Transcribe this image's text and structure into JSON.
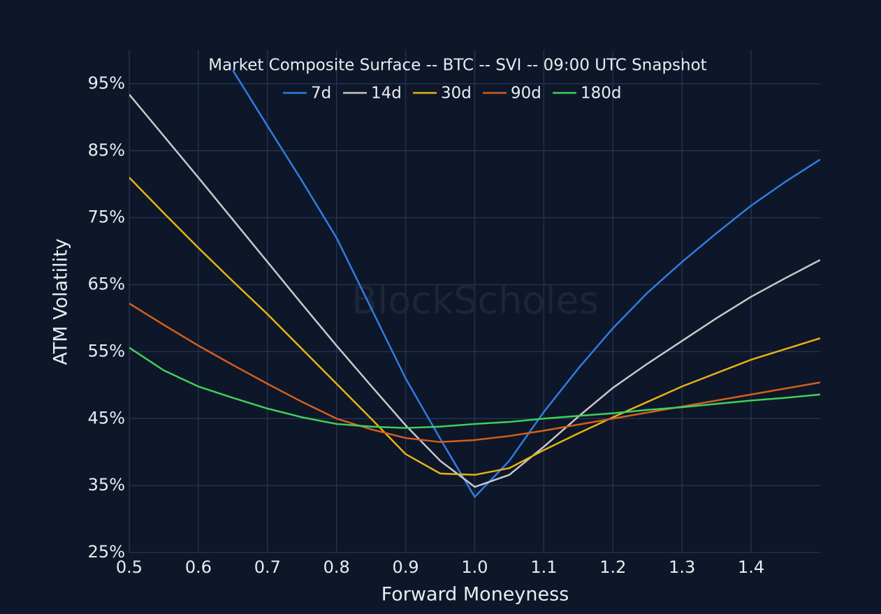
{
  "chart_data": {
    "type": "line",
    "title": "Market Composite Surface -- BTC -- SVI -- 09:00 UTC Snapshot",
    "x_label": "Forward Moneyness",
    "y_label": "ATM Volatility",
    "watermark": "BlockScholes",
    "x": [
      0.5,
      0.55,
      0.6,
      0.65,
      0.7,
      0.75,
      0.8,
      0.85,
      0.9,
      0.95,
      1.0,
      1.05,
      1.1,
      1.15,
      1.2,
      1.25,
      1.3,
      1.35,
      1.4,
      1.45,
      1.5
    ],
    "series": [
      {
        "name": "7d",
        "color": "#2f7de1",
        "values": [
          null,
          null,
          null,
          97,
          88.7,
          80.5,
          72,
          61.5,
          51,
          42,
          33.3,
          38.7,
          46,
          52.5,
          58.5,
          63.8,
          68.4,
          72.7,
          76.8,
          80.4,
          83.7
        ]
      },
      {
        "name": "14d",
        "color": "#c8c8c8",
        "values": [
          93.4,
          87.2,
          81,
          74.7,
          68.4,
          62.1,
          55.9,
          49.9,
          44,
          38.7,
          34.8,
          36.6,
          40.8,
          45.3,
          49.6,
          53.2,
          56.6,
          60,
          63.2,
          66,
          68.7
        ]
      },
      {
        "name": "30d",
        "color": "#e6b214",
        "values": [
          81,
          75.7,
          70.5,
          65.5,
          60.6,
          55.4,
          50.2,
          45,
          39.7,
          36.8,
          36.6,
          37.6,
          40.3,
          42.8,
          45.2,
          47.5,
          49.8,
          51.8,
          53.8,
          55.4,
          57
        ]
      },
      {
        "name": "90d",
        "color": "#d4601a",
        "values": [
          62.2,
          59,
          55.9,
          53,
          50.2,
          47.5,
          45,
          43.4,
          42.1,
          41.5,
          41.8,
          42.4,
          43.2,
          44.1,
          45,
          45.9,
          46.8,
          47.7,
          48.6,
          49.5,
          50.4
        ]
      },
      {
        "name": "180d",
        "color": "#3fd15a",
        "values": [
          55.6,
          52.2,
          49.8,
          48.1,
          46.5,
          45.2,
          44.2,
          43.8,
          43.6,
          43.8,
          44.2,
          44.5,
          45,
          45.4,
          45.8,
          46.3,
          46.7,
          47.2,
          47.7,
          48.1,
          48.6
        ]
      }
    ],
    "xlim": [
      0.5,
      1.5
    ],
    "ylim": [
      25,
      100
    ],
    "xticks": [
      0.5,
      0.6,
      0.7,
      0.8,
      0.9,
      {
        "value": 1,
        "label": "1.0"
      },
      1.1,
      1.2,
      1.3,
      1.4
    ],
    "yticks": [
      {
        "value": 25,
        "label": "25%"
      },
      {
        "value": 35,
        "label": "35%"
      },
      {
        "value": 45,
        "label": "45%"
      },
      {
        "value": 55,
        "label": "55%"
      },
      {
        "value": 65,
        "label": "65%"
      },
      {
        "value": 75,
        "label": "75%"
      },
      {
        "value": 85,
        "label": "85%"
      },
      {
        "value": 95,
        "label": "95%"
      }
    ],
    "grid": true
  }
}
